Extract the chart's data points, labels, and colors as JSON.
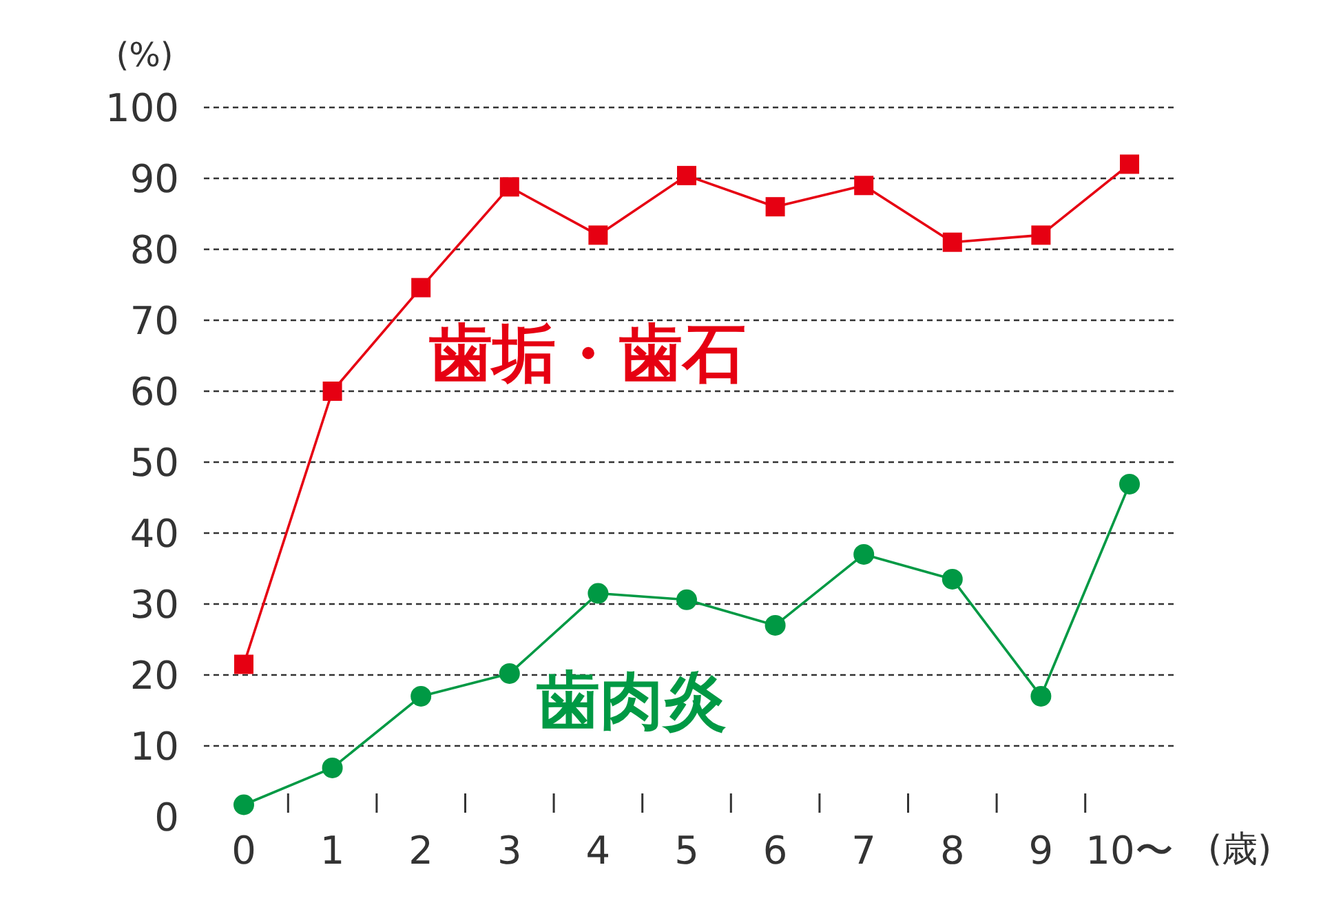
{
  "chart_data": {
    "type": "line",
    "ylabel": "(%)",
    "xlabel": "(歳)",
    "categories": [
      "0",
      "1",
      "2",
      "3",
      "4",
      "5",
      "6",
      "7",
      "8",
      "9",
      "10〜"
    ],
    "series": [
      {
        "name": "歯垢・歯石",
        "color": "#e60012",
        "marker": "square",
        "values": [
          21.5,
          60,
          74.6,
          88.8,
          82,
          90.4,
          86,
          89,
          81,
          82,
          92
        ]
      },
      {
        "name": "歯肉炎",
        "color": "#009944",
        "marker": "circle",
        "values": [
          1.7,
          6.9,
          17,
          20.2,
          31.5,
          30.6,
          27,
          37,
          33.5,
          17,
          46.9
        ]
      }
    ],
    "ylim": [
      0,
      100
    ],
    "yticks": [
      0,
      10,
      20,
      30,
      40,
      50,
      60,
      70,
      80,
      90,
      100
    ],
    "grid": "y",
    "line_style": "solid"
  }
}
